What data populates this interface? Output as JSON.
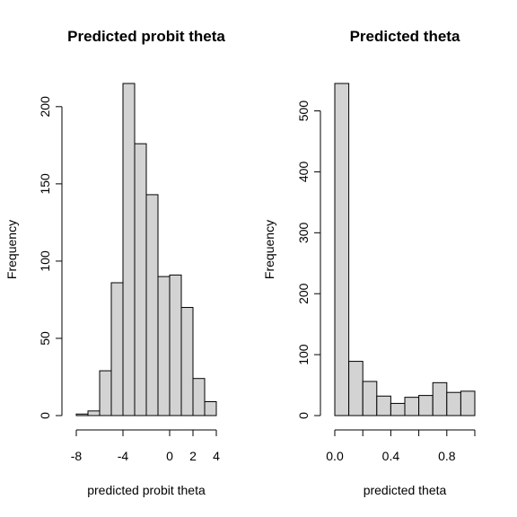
{
  "chart_data": [
    {
      "type": "bar",
      "title": "Predicted probit theta",
      "xlabel": "predicted probit theta",
      "ylabel": "Frequency",
      "bin_edges": [
        -8,
        -7,
        -6,
        -5,
        -4,
        -3,
        -2,
        -1,
        0,
        1,
        2,
        3,
        4
      ],
      "values": [
        1,
        3,
        29,
        86,
        215,
        176,
        143,
        90,
        91,
        70,
        24,
        9
      ],
      "xlim": [
        -8,
        4
      ],
      "ylim": [
        0,
        215
      ],
      "x_ticks": [
        -8,
        -4,
        0,
        2,
        4
      ],
      "x_tick_labels": [
        "-8",
        "-4",
        "0",
        "2",
        "4"
      ],
      "y_ticks": [
        0,
        50,
        100,
        150,
        200
      ],
      "y_tick_labels": [
        "0",
        "50",
        "100",
        "150",
        "200"
      ]
    },
    {
      "type": "bar",
      "title": "Predicted theta",
      "xlabel": "predicted theta",
      "ylabel": "Frequency",
      "bin_edges": [
        0.0,
        0.1,
        0.2,
        0.3,
        0.4,
        0.5,
        0.6,
        0.7,
        0.8,
        0.9,
        1.0
      ],
      "values": [
        545,
        89,
        56,
        32,
        20,
        30,
        33,
        54,
        38,
        40
      ],
      "xlim": [
        0,
        1
      ],
      "ylim": [
        0,
        545
      ],
      "x_ticks": [
        0.0,
        0.2,
        0.4,
        0.6,
        0.8,
        1.0
      ],
      "x_tick_labels": [
        "0.0",
        "",
        "0.4",
        "",
        "0.8",
        ""
      ],
      "y_ticks": [
        0,
        100,
        200,
        300,
        400,
        500
      ],
      "y_tick_labels": [
        "0",
        "100",
        "200",
        "300",
        "400",
        "500"
      ]
    }
  ]
}
